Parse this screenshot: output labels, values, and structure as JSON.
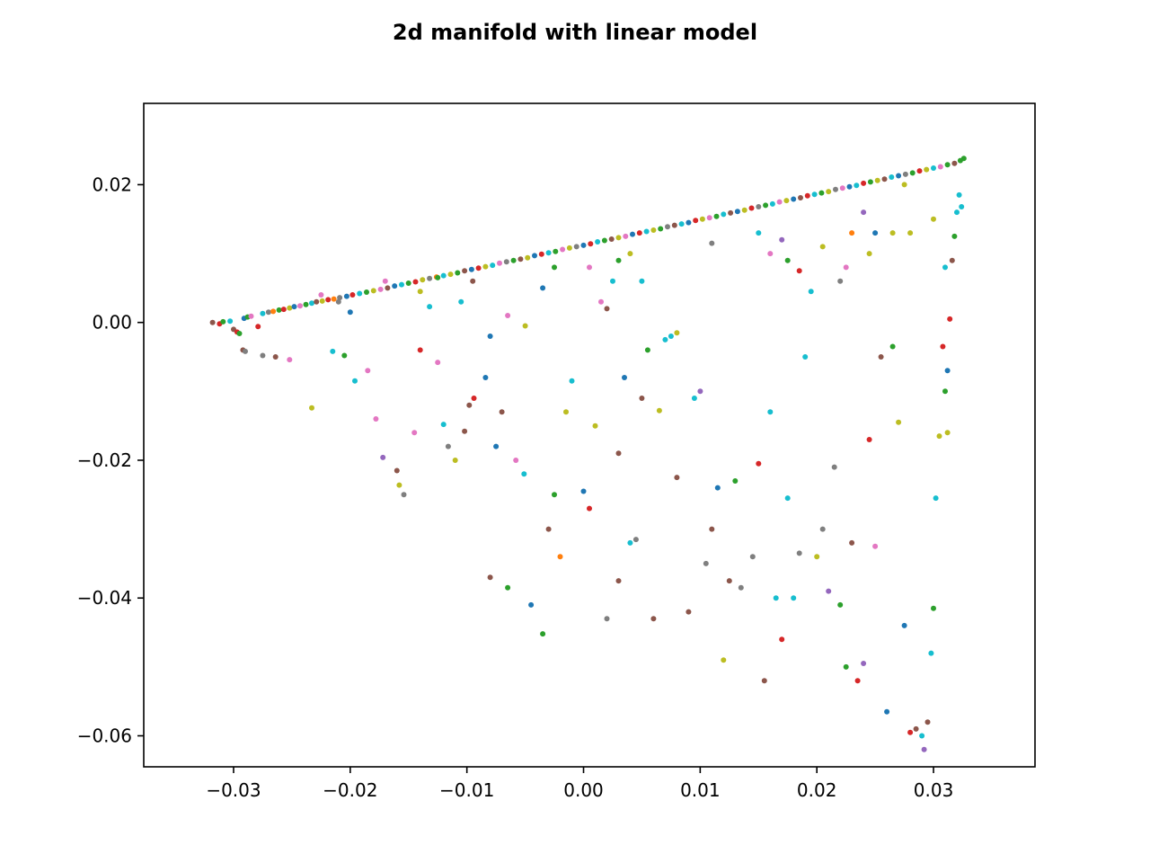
{
  "chart_data": {
    "type": "scatter",
    "title": "2d manifold with linear model",
    "xlabel": "",
    "ylabel": "",
    "xlim": [
      -0.0377,
      0.0387
    ],
    "ylim": [
      -0.0645,
      0.0318
    ],
    "xticks": [
      -0.03,
      -0.02,
      -0.01,
      0.0,
      0.01,
      0.02,
      0.03
    ],
    "xtick_labels": [
      "−0.03",
      "−0.02",
      "−0.01",
      "0.00",
      "0.01",
      "0.02",
      "0.03"
    ],
    "yticks": [
      0.02,
      0.0,
      -0.02,
      -0.04,
      -0.06
    ],
    "ytick_labels": [
      "0.02",
      "0.00",
      "−0.02",
      "−0.04",
      "−0.06"
    ],
    "grid": false,
    "legend": "none",
    "palette": [
      "#1f77b4",
      "#ff7f0e",
      "#2ca02c",
      "#d62728",
      "#9467bd",
      "#8c564b",
      "#e377c2",
      "#7f7f7f",
      "#bcbd22",
      "#17becf"
    ],
    "line_edge": {
      "description_points": [
        [
          -0.0318,
          0.0
        ],
        [
          0.0326,
          0.0238
        ]
      ]
    },
    "points": [
      [
        -0.0318,
        0.0,
        5
      ],
      [
        -0.0312,
        -0.0002,
        3
      ],
      [
        -0.0309,
        0.0001,
        2
      ],
      [
        -0.0303,
        0.0002,
        9
      ],
      [
        -0.03,
        -0.001,
        5
      ],
      [
        -0.0297,
        -0.0014,
        3
      ],
      [
        -0.0295,
        -0.0016,
        2
      ],
      [
        -0.0291,
        0.0006,
        0
      ],
      [
        -0.0288,
        0.0008,
        2
      ],
      [
        -0.0285,
        0.0009,
        6
      ],
      [
        -0.0279,
        -0.0006,
        3
      ],
      [
        -0.0275,
        0.0013,
        9
      ],
      [
        -0.027,
        0.0015,
        7
      ],
      [
        -0.0266,
        0.0016,
        1
      ],
      [
        -0.0261,
        0.0018,
        2
      ],
      [
        -0.0257,
        0.0019,
        3
      ],
      [
        -0.0252,
        0.0021,
        8
      ],
      [
        -0.0248,
        0.0023,
        0
      ],
      [
        -0.0243,
        0.0024,
        6
      ],
      [
        -0.0238,
        0.0026,
        2
      ],
      [
        -0.0233,
        0.0028,
        9
      ],
      [
        -0.0229,
        0.003,
        5
      ],
      [
        -0.0224,
        0.0031,
        8
      ],
      [
        -0.0219,
        0.0033,
        3
      ],
      [
        -0.0214,
        0.0034,
        1
      ],
      [
        -0.0209,
        0.0036,
        7
      ],
      [
        -0.0203,
        0.0038,
        0
      ],
      [
        -0.0198,
        0.004,
        3
      ],
      [
        -0.0192,
        0.0042,
        9
      ],
      [
        -0.0186,
        0.0044,
        2
      ],
      [
        -0.018,
        0.0046,
        8
      ],
      [
        -0.0174,
        0.0048,
        6
      ],
      [
        -0.0168,
        0.005,
        5
      ],
      [
        -0.0162,
        0.0053,
        0
      ],
      [
        -0.0156,
        0.0055,
        9
      ],
      [
        -0.015,
        0.0057,
        2
      ],
      [
        -0.0144,
        0.0059,
        3
      ],
      [
        -0.0138,
        0.0062,
        8
      ],
      [
        -0.0132,
        0.0064,
        7
      ],
      [
        -0.0126,
        0.0066,
        1
      ],
      [
        -0.012,
        0.0068,
        9
      ],
      [
        -0.0114,
        0.007,
        8
      ],
      [
        -0.0108,
        0.0072,
        2
      ],
      [
        -0.0102,
        0.0075,
        5
      ],
      [
        -0.0096,
        0.0077,
        0
      ],
      [
        -0.009,
        0.0079,
        3
      ],
      [
        -0.0084,
        0.0081,
        8
      ],
      [
        -0.0078,
        0.0083,
        9
      ],
      [
        -0.0072,
        0.0086,
        6
      ],
      [
        -0.0066,
        0.0088,
        7
      ],
      [
        -0.006,
        0.009,
        2
      ],
      [
        -0.0054,
        0.0092,
        5
      ],
      [
        -0.0048,
        0.0094,
        8
      ],
      [
        -0.0042,
        0.0097,
        0
      ],
      [
        -0.0036,
        0.0099,
        3
      ],
      [
        -0.003,
        0.0101,
        9
      ],
      [
        -0.0024,
        0.0103,
        2
      ],
      [
        -0.0018,
        0.0106,
        6
      ],
      [
        -0.0012,
        0.0108,
        8
      ],
      [
        -0.0006,
        0.011,
        7
      ],
      [
        0.0,
        0.0112,
        0
      ],
      [
        0.0006,
        0.0114,
        3
      ],
      [
        0.0012,
        0.0117,
        9
      ],
      [
        0.0018,
        0.0119,
        2
      ],
      [
        0.0024,
        0.0121,
        5
      ],
      [
        0.003,
        0.0123,
        8
      ],
      [
        0.0036,
        0.0125,
        6
      ],
      [
        0.0042,
        0.0128,
        0
      ],
      [
        0.0048,
        0.013,
        3
      ],
      [
        0.0054,
        0.0132,
        9
      ],
      [
        0.006,
        0.0134,
        8
      ],
      [
        0.0066,
        0.0136,
        2
      ],
      [
        0.0072,
        0.0139,
        7
      ],
      [
        0.0078,
        0.0141,
        5
      ],
      [
        0.0084,
        0.0143,
        9
      ],
      [
        0.009,
        0.0145,
        0
      ],
      [
        0.0096,
        0.0148,
        3
      ],
      [
        0.0102,
        0.015,
        8
      ],
      [
        0.0108,
        0.0152,
        6
      ],
      [
        0.0114,
        0.0154,
        2
      ],
      [
        0.012,
        0.0157,
        9
      ],
      [
        0.0126,
        0.0159,
        5
      ],
      [
        0.0132,
        0.0161,
        0
      ],
      [
        0.0138,
        0.0163,
        8
      ],
      [
        0.0144,
        0.0166,
        3
      ],
      [
        0.015,
        0.0168,
        7
      ],
      [
        0.0156,
        0.017,
        2
      ],
      [
        0.0162,
        0.0172,
        9
      ],
      [
        0.0168,
        0.0175,
        6
      ],
      [
        0.0174,
        0.0177,
        8
      ],
      [
        0.018,
        0.0179,
        0
      ],
      [
        0.0186,
        0.0181,
        5
      ],
      [
        0.0192,
        0.0184,
        3
      ],
      [
        0.0198,
        0.0186,
        9
      ],
      [
        0.0204,
        0.0188,
        2
      ],
      [
        0.021,
        0.019,
        8
      ],
      [
        0.0216,
        0.0193,
        7
      ],
      [
        0.0222,
        0.0195,
        6
      ],
      [
        0.0228,
        0.0197,
        0
      ],
      [
        0.0234,
        0.0199,
        9
      ],
      [
        0.024,
        0.0202,
        3
      ],
      [
        0.0246,
        0.0204,
        2
      ],
      [
        0.0252,
        0.0206,
        8
      ],
      [
        0.0258,
        0.0208,
        5
      ],
      [
        0.0264,
        0.0211,
        9
      ],
      [
        0.027,
        0.0213,
        0
      ],
      [
        0.0276,
        0.0215,
        7
      ],
      [
        0.0282,
        0.0217,
        2
      ],
      [
        0.0288,
        0.022,
        3
      ],
      [
        0.0294,
        0.0222,
        8
      ],
      [
        0.03,
        0.0224,
        9
      ],
      [
        0.0306,
        0.0226,
        6
      ],
      [
        0.0312,
        0.0229,
        2
      ],
      [
        0.0318,
        0.0231,
        5
      ],
      [
        0.0323,
        0.0235,
        2
      ],
      [
        0.0326,
        0.0238,
        2
      ],
      [
        -0.0292,
        -0.004,
        5
      ],
      [
        -0.029,
        -0.0042,
        7
      ],
      [
        -0.0275,
        -0.0048,
        7
      ],
      [
        -0.0264,
        -0.005,
        5
      ],
      [
        -0.0252,
        -0.0054,
        6
      ],
      [
        -0.0233,
        -0.0124,
        8
      ],
      [
        -0.0215,
        -0.0042,
        9
      ],
      [
        -0.0205,
        -0.0048,
        2
      ],
      [
        -0.0196,
        -0.0085,
        9
      ],
      [
        -0.0185,
        -0.007,
        6
      ],
      [
        -0.0178,
        -0.014,
        6
      ],
      [
        -0.0172,
        -0.0196,
        4
      ],
      [
        -0.016,
        -0.0215,
        5
      ],
      [
        -0.0158,
        -0.0236,
        8
      ],
      [
        -0.0154,
        -0.025,
        7
      ],
      [
        -0.0145,
        -0.016,
        6
      ],
      [
        -0.014,
        -0.004,
        3
      ],
      [
        -0.0132,
        0.0023,
        9
      ],
      [
        -0.0125,
        -0.0058,
        6
      ],
      [
        -0.012,
        -0.0148,
        9
      ],
      [
        -0.0116,
        -0.018,
        7
      ],
      [
        -0.011,
        -0.02,
        8
      ],
      [
        -0.0102,
        -0.0158,
        5
      ],
      [
        -0.0098,
        -0.012,
        5
      ],
      [
        -0.0094,
        -0.011,
        3
      ],
      [
        -0.0084,
        -0.008,
        0
      ],
      [
        -0.008,
        -0.037,
        5
      ],
      [
        -0.0075,
        -0.018,
        0
      ],
      [
        -0.007,
        -0.013,
        5
      ],
      [
        -0.0065,
        -0.0385,
        2
      ],
      [
        -0.0058,
        -0.02,
        6
      ],
      [
        -0.0051,
        -0.022,
        9
      ],
      [
        -0.0045,
        -0.041,
        0
      ],
      [
        -0.0035,
        -0.0452,
        2
      ],
      [
        -0.003,
        -0.03,
        5
      ],
      [
        -0.0025,
        -0.025,
        2
      ],
      [
        -0.002,
        -0.034,
        1
      ],
      [
        -0.0015,
        -0.013,
        8
      ],
      [
        -0.001,
        -0.0085,
        9
      ],
      [
        0.0,
        -0.0245,
        0
      ],
      [
        0.0005,
        -0.027,
        3
      ],
      [
        0.001,
        -0.015,
        8
      ],
      [
        0.0015,
        0.003,
        6
      ],
      [
        0.002,
        -0.043,
        7
      ],
      [
        0.003,
        -0.0375,
        5
      ],
      [
        0.003,
        -0.019,
        5
      ],
      [
        0.0035,
        -0.008,
        0
      ],
      [
        0.004,
        -0.032,
        9
      ],
      [
        0.0045,
        -0.0315,
        7
      ],
      [
        0.005,
        -0.011,
        5
      ],
      [
        0.0055,
        -0.004,
        2
      ],
      [
        0.006,
        -0.043,
        5
      ],
      [
        0.0065,
        -0.0128,
        8
      ],
      [
        0.0075,
        -0.002,
        9
      ],
      [
        0.008,
        -0.0225,
        5
      ],
      [
        0.009,
        -0.042,
        5
      ],
      [
        0.0095,
        -0.011,
        9
      ],
      [
        0.01,
        -0.01,
        4
      ],
      [
        0.0105,
        -0.035,
        7
      ],
      [
        0.011,
        -0.03,
        5
      ],
      [
        0.0115,
        -0.024,
        0
      ],
      [
        0.012,
        -0.049,
        8
      ],
      [
        0.0125,
        -0.0375,
        5
      ],
      [
        0.013,
        -0.023,
        2
      ],
      [
        0.0135,
        -0.0385,
        7
      ],
      [
        0.0145,
        -0.034,
        7
      ],
      [
        0.015,
        -0.0205,
        3
      ],
      [
        0.0155,
        -0.052,
        5
      ],
      [
        0.016,
        -0.013,
        9
      ],
      [
        0.0165,
        -0.04,
        9
      ],
      [
        0.017,
        -0.046,
        3
      ],
      [
        0.0175,
        -0.0255,
        9
      ],
      [
        0.018,
        -0.04,
        9
      ],
      [
        0.0185,
        -0.0335,
        7
      ],
      [
        0.019,
        -0.005,
        9
      ],
      [
        0.02,
        -0.034,
        8
      ],
      [
        0.0205,
        -0.03,
        7
      ],
      [
        0.021,
        -0.039,
        4
      ],
      [
        0.0215,
        -0.021,
        7
      ],
      [
        0.022,
        -0.041,
        2
      ],
      [
        0.0225,
        -0.05,
        2
      ],
      [
        0.023,
        -0.032,
        5
      ],
      [
        0.0235,
        -0.052,
        3
      ],
      [
        0.024,
        -0.0495,
        4
      ],
      [
        0.0245,
        -0.017,
        3
      ],
      [
        0.025,
        -0.0325,
        6
      ],
      [
        0.0255,
        -0.005,
        5
      ],
      [
        0.026,
        -0.0565,
        0
      ],
      [
        0.0265,
        -0.0035,
        2
      ],
      [
        0.027,
        -0.0145,
        8
      ],
      [
        0.0275,
        -0.044,
        0
      ],
      [
        0.028,
        -0.0595,
        3
      ],
      [
        0.0285,
        -0.059,
        5
      ],
      [
        0.029,
        -0.06,
        9
      ],
      [
        0.0292,
        -0.062,
        4
      ],
      [
        0.0295,
        -0.058,
        5
      ],
      [
        0.0298,
        -0.048,
        9
      ],
      [
        0.03,
        -0.0415,
        2
      ],
      [
        0.0302,
        -0.0255,
        9
      ],
      [
        0.0305,
        -0.0165,
        8
      ],
      [
        0.0308,
        -0.0035,
        3
      ],
      [
        0.031,
        -0.01,
        2
      ],
      [
        0.0312,
        -0.007,
        0
      ],
      [
        0.0314,
        0.0005,
        3
      ],
      [
        0.0316,
        0.009,
        5
      ],
      [
        0.0318,
        0.0125,
        2
      ],
      [
        0.032,
        0.016,
        9
      ],
      [
        0.0322,
        0.0185,
        9
      ],
      [
        0.0324,
        0.0168,
        9
      ],
      [
        0.028,
        0.013,
        8
      ],
      [
        0.0275,
        0.02,
        8
      ],
      [
        0.0265,
        0.013,
        8
      ],
      [
        0.025,
        0.013,
        0
      ],
      [
        0.0245,
        0.01,
        8
      ],
      [
        0.024,
        0.016,
        4
      ],
      [
        0.023,
        0.013,
        1
      ],
      [
        0.0225,
        0.008,
        6
      ],
      [
        0.022,
        0.006,
        7
      ],
      [
        0.0205,
        0.011,
        8
      ],
      [
        0.0195,
        0.0045,
        9
      ],
      [
        0.0185,
        0.0075,
        3
      ],
      [
        0.0175,
        0.009,
        2
      ],
      [
        0.017,
        0.012,
        4
      ],
      [
        0.016,
        0.01,
        6
      ],
      [
        0.015,
        0.013,
        9
      ],
      [
        0.011,
        0.0115,
        7
      ],
      [
        0.008,
        -0.0015,
        8
      ],
      [
        0.007,
        -0.0025,
        9
      ],
      [
        0.005,
        0.006,
        9
      ],
      [
        0.004,
        0.01,
        8
      ],
      [
        0.003,
        0.009,
        2
      ],
      [
        0.0025,
        0.006,
        9
      ],
      [
        0.002,
        0.002,
        5
      ],
      [
        0.0005,
        0.008,
        6
      ],
      [
        -0.0025,
        0.008,
        2
      ],
      [
        -0.0035,
        0.005,
        0
      ],
      [
        -0.005,
        -0.0005,
        8
      ],
      [
        -0.0065,
        0.001,
        6
      ],
      [
        -0.008,
        -0.002,
        0
      ],
      [
        -0.0095,
        0.006,
        5
      ],
      [
        -0.0105,
        0.003,
        9
      ],
      [
        -0.0125,
        0.0065,
        2
      ],
      [
        -0.014,
        0.0045,
        8
      ],
      [
        -0.017,
        0.006,
        6
      ],
      [
        -0.02,
        0.0015,
        0
      ],
      [
        -0.021,
        0.003,
        7
      ],
      [
        -0.0225,
        0.004,
        6
      ],
      [
        0.03,
        0.015,
        8
      ],
      [
        0.031,
        0.008,
        9
      ],
      [
        0.0312,
        -0.016,
        8
      ]
    ]
  }
}
